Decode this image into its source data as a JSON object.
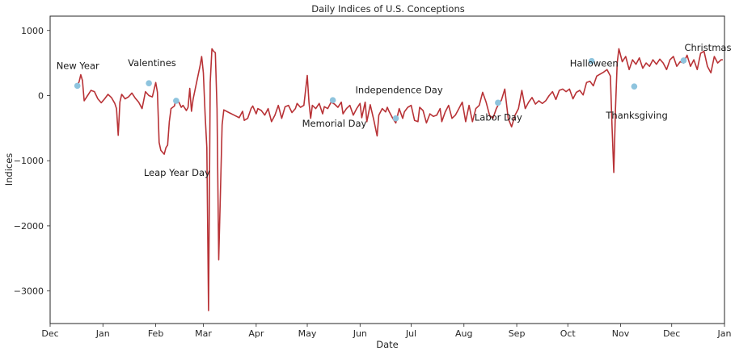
{
  "chart_data": {
    "type": "line",
    "title": "Daily Indices of U.S. Conceptions",
    "xlabel": "Date",
    "ylabel": "Indices",
    "x_axis": {
      "kind": "date",
      "range": [
        "1969-12-01",
        "1971-01-01"
      ],
      "tick_dates": [
        "1969-12-01",
        "1970-01-01",
        "1970-02-01",
        "1970-03-01",
        "1970-04-01",
        "1970-05-01",
        "1970-06-01",
        "1970-07-01",
        "1970-08-01",
        "1970-09-01",
        "1970-10-01",
        "1970-11-01",
        "1970-12-01",
        "1971-01-01"
      ],
      "tick_labels": [
        "Dec",
        "Jan",
        "Feb",
        "Mar",
        "Apr",
        "May",
        "Jun",
        "Jul",
        "Aug",
        "Sep",
        "Oct",
        "Nov",
        "Dec",
        "Jan"
      ]
    },
    "y_axis": {
      "range": [
        -3500,
        1220
      ],
      "ticks": [
        1000,
        0,
        -1000,
        -2000,
        -3000
      ],
      "tick_labels": [
        "1000",
        "0",
        "−1000",
        "−2000",
        "−3000"
      ]
    },
    "grid": false,
    "colors": {
      "line": "#b83236",
      "marker": "#8ec4de",
      "axes": "#262626"
    },
    "series": [
      {
        "points": [
          [
            "1969-12-17",
            160
          ],
          [
            "1969-12-18",
            210
          ],
          [
            "1969-12-19",
            320
          ],
          [
            "1969-12-20",
            230
          ],
          [
            "1969-12-21",
            -80
          ],
          [
            "1969-12-23",
            0
          ],
          [
            "1969-12-25",
            80
          ],
          [
            "1969-12-27",
            60
          ],
          [
            "1969-12-29",
            -50
          ],
          [
            "1969-12-31",
            -110
          ],
          [
            "1970-01-02",
            -50
          ],
          [
            "1970-01-04",
            20
          ],
          [
            "1970-01-06",
            -30
          ],
          [
            "1970-01-08",
            -120
          ],
          [
            "1970-01-09",
            -200
          ],
          [
            "1970-01-10",
            -610
          ],
          [
            "1970-01-11",
            -100
          ],
          [
            "1970-01-12",
            20
          ],
          [
            "1970-01-14",
            -50
          ],
          [
            "1970-01-16",
            -20
          ],
          [
            "1970-01-18",
            40
          ],
          [
            "1970-01-20",
            -40
          ],
          [
            "1970-01-22",
            -100
          ],
          [
            "1970-01-24",
            -200
          ],
          [
            "1970-01-26",
            60
          ],
          [
            "1970-01-28",
            0
          ],
          [
            "1970-01-30",
            -20
          ],
          [
            "1970-02-01",
            200
          ],
          [
            "1970-02-02",
            50
          ],
          [
            "1970-02-03",
            -720
          ],
          [
            "1970-02-04",
            -840
          ],
          [
            "1970-02-06",
            -900
          ],
          [
            "1970-02-07",
            -800
          ],
          [
            "1970-02-08",
            -760
          ],
          [
            "1970-02-09",
            -400
          ],
          [
            "1970-02-10",
            -200
          ],
          [
            "1970-02-12",
            -160
          ],
          [
            "1970-02-13",
            -50
          ],
          [
            "1970-02-14",
            -70
          ],
          [
            "1970-02-16",
            -180
          ],
          [
            "1970-02-17",
            -150
          ],
          [
            "1970-02-19",
            -230
          ],
          [
            "1970-02-20",
            -180
          ],
          [
            "1970-02-21",
            110
          ],
          [
            "1970-02-22",
            -240
          ],
          [
            "1970-02-23",
            -50
          ],
          [
            "1970-02-25",
            200
          ],
          [
            "1970-02-27",
            450
          ],
          [
            "1970-02-28",
            600
          ],
          [
            "1970-03-01",
            350
          ],
          [
            "1970-03-02",
            -300
          ],
          [
            "1970-03-03",
            -800
          ],
          [
            "1970-03-04",
            -3300
          ],
          [
            "1970-03-05",
            200
          ],
          [
            "1970-03-06",
            720
          ],
          [
            "1970-03-07",
            680
          ],
          [
            "1970-03-08",
            660
          ],
          [
            "1970-03-09",
            -200
          ],
          [
            "1970-03-10",
            -2520
          ],
          [
            "1970-03-11",
            -1500
          ],
          [
            "1970-03-12",
            -450
          ],
          [
            "1970-03-13",
            -220
          ],
          [
            "1970-03-16",
            -260
          ],
          [
            "1970-03-19",
            -300
          ],
          [
            "1970-03-22",
            -340
          ],
          [
            "1970-03-24",
            -240
          ],
          [
            "1970-03-25",
            -380
          ],
          [
            "1970-03-27",
            -350
          ],
          [
            "1970-03-29",
            -200
          ],
          [
            "1970-03-30",
            -160
          ],
          [
            "1970-04-01",
            -280
          ],
          [
            "1970-04-02",
            -200
          ],
          [
            "1970-04-04",
            -230
          ],
          [
            "1970-04-06",
            -300
          ],
          [
            "1970-04-08",
            -200
          ],
          [
            "1970-04-10",
            -400
          ],
          [
            "1970-04-12",
            -300
          ],
          [
            "1970-04-14",
            -150
          ],
          [
            "1970-04-16",
            -350
          ],
          [
            "1970-04-18",
            -170
          ],
          [
            "1970-04-20",
            -150
          ],
          [
            "1970-04-22",
            -260
          ],
          [
            "1970-04-24",
            -200
          ],
          [
            "1970-04-25",
            -120
          ],
          [
            "1970-04-27",
            -180
          ],
          [
            "1970-04-29",
            -150
          ],
          [
            "1970-05-01",
            310
          ],
          [
            "1970-05-02",
            -100
          ],
          [
            "1970-05-03",
            -350
          ],
          [
            "1970-05-04",
            -150
          ],
          [
            "1970-05-06",
            -200
          ],
          [
            "1970-05-08",
            -120
          ],
          [
            "1970-05-10",
            -280
          ],
          [
            "1970-05-11",
            -170
          ],
          [
            "1970-05-13",
            -200
          ],
          [
            "1970-05-15",
            -100
          ],
          [
            "1970-05-17",
            -130
          ],
          [
            "1970-05-19",
            -180
          ],
          [
            "1970-05-21",
            -100
          ],
          [
            "1970-05-22",
            -280
          ],
          [
            "1970-05-24",
            -200
          ],
          [
            "1970-05-26",
            -150
          ],
          [
            "1970-05-28",
            -300
          ],
          [
            "1970-05-30",
            -200
          ],
          [
            "1970-06-01",
            -120
          ],
          [
            "1970-06-02",
            -340
          ],
          [
            "1970-06-04",
            -100
          ],
          [
            "1970-06-05",
            -400
          ],
          [
            "1970-06-07",
            -140
          ],
          [
            "1970-06-09",
            -370
          ],
          [
            "1970-06-11",
            -620
          ],
          [
            "1970-06-12",
            -300
          ],
          [
            "1970-06-14",
            -200
          ],
          [
            "1970-06-16",
            -250
          ],
          [
            "1970-06-17",
            -180
          ],
          [
            "1970-06-18",
            -240
          ],
          [
            "1970-06-20",
            -340
          ],
          [
            "1970-06-22",
            -420
          ],
          [
            "1970-06-24",
            -200
          ],
          [
            "1970-06-26",
            -350
          ],
          [
            "1970-06-27",
            -250
          ],
          [
            "1970-06-29",
            -180
          ],
          [
            "1970-07-01",
            -150
          ],
          [
            "1970-07-03",
            -380
          ],
          [
            "1970-07-05",
            -400
          ],
          [
            "1970-07-06",
            -180
          ],
          [
            "1970-07-08",
            -230
          ],
          [
            "1970-07-10",
            -420
          ],
          [
            "1970-07-12",
            -280
          ],
          [
            "1970-07-14",
            -320
          ],
          [
            "1970-07-16",
            -300
          ],
          [
            "1970-07-18",
            -200
          ],
          [
            "1970-07-19",
            -400
          ],
          [
            "1970-07-21",
            -250
          ],
          [
            "1970-07-23",
            -150
          ],
          [
            "1970-07-25",
            -350
          ],
          [
            "1970-07-27",
            -300
          ],
          [
            "1970-07-29",
            -200
          ],
          [
            "1970-07-31",
            -100
          ],
          [
            "1970-08-02",
            -400
          ],
          [
            "1970-08-04",
            -150
          ],
          [
            "1970-08-06",
            -400
          ],
          [
            "1970-08-08",
            -200
          ],
          [
            "1970-08-10",
            -150
          ],
          [
            "1970-08-12",
            50
          ],
          [
            "1970-08-14",
            -100
          ],
          [
            "1970-08-16",
            -300
          ],
          [
            "1970-08-18",
            -350
          ],
          [
            "1970-08-20",
            -200
          ],
          [
            "1970-08-21",
            -150
          ],
          [
            "1970-08-23",
            -70
          ],
          [
            "1970-08-25",
            100
          ],
          [
            "1970-08-27",
            -350
          ],
          [
            "1970-08-29",
            -480
          ],
          [
            "1970-08-31",
            -300
          ],
          [
            "1970-09-02",
            -200
          ],
          [
            "1970-09-04",
            80
          ],
          [
            "1970-09-06",
            -200
          ],
          [
            "1970-09-08",
            -100
          ],
          [
            "1970-09-10",
            -30
          ],
          [
            "1970-09-12",
            -130
          ],
          [
            "1970-09-14",
            -80
          ],
          [
            "1970-09-16",
            -120
          ],
          [
            "1970-09-18",
            -80
          ],
          [
            "1970-09-20",
            0
          ],
          [
            "1970-09-22",
            60
          ],
          [
            "1970-09-24",
            -60
          ],
          [
            "1970-09-26",
            80
          ],
          [
            "1970-09-28",
            100
          ],
          [
            "1970-09-30",
            60
          ],
          [
            "1970-10-02",
            100
          ],
          [
            "1970-10-04",
            -50
          ],
          [
            "1970-10-06",
            50
          ],
          [
            "1970-10-08",
            80
          ],
          [
            "1970-10-10",
            10
          ],
          [
            "1970-10-12",
            200
          ],
          [
            "1970-10-14",
            220
          ],
          [
            "1970-10-16",
            150
          ],
          [
            "1970-10-18",
            300
          ],
          [
            "1970-10-20",
            330
          ],
          [
            "1970-10-22",
            360
          ],
          [
            "1970-10-24",
            400
          ],
          [
            "1970-10-26",
            300
          ],
          [
            "1970-10-27",
            -500
          ],
          [
            "1970-10-28",
            -1180
          ],
          [
            "1970-10-29",
            -200
          ],
          [
            "1970-10-30",
            500
          ],
          [
            "1970-10-31",
            720
          ],
          [
            "1970-11-02",
            520
          ],
          [
            "1970-11-04",
            600
          ],
          [
            "1970-11-06",
            400
          ],
          [
            "1970-11-08",
            550
          ],
          [
            "1970-11-10",
            480
          ],
          [
            "1970-11-12",
            580
          ],
          [
            "1970-11-14",
            420
          ],
          [
            "1970-11-16",
            500
          ],
          [
            "1970-11-18",
            450
          ],
          [
            "1970-11-20",
            550
          ],
          [
            "1970-11-22",
            480
          ],
          [
            "1970-11-24",
            560
          ],
          [
            "1970-11-26",
            500
          ],
          [
            "1970-11-28",
            400
          ],
          [
            "1970-11-30",
            550
          ],
          [
            "1970-12-02",
            600
          ],
          [
            "1970-12-04",
            450
          ],
          [
            "1970-12-06",
            520
          ],
          [
            "1970-12-08",
            500
          ],
          [
            "1970-12-10",
            620
          ],
          [
            "1970-12-12",
            450
          ],
          [
            "1970-12-14",
            550
          ],
          [
            "1970-12-16",
            400
          ],
          [
            "1970-12-18",
            650
          ],
          [
            "1970-12-20",
            680
          ],
          [
            "1970-12-22",
            450
          ],
          [
            "1970-12-24",
            350
          ],
          [
            "1970-12-26",
            600
          ],
          [
            "1970-12-28",
            500
          ],
          [
            "1970-12-30",
            550
          ],
          [
            "1970-12-31",
            550
          ]
        ]
      }
    ],
    "holidays": [
      {
        "label": "New Year",
        "date": "1969-12-17",
        "value": 150
      },
      {
        "label": "Valentines",
        "date": "1970-01-28",
        "value": 190
      },
      {
        "label": "Leap Year Day",
        "date": "1970-02-13",
        "value": -80
      },
      {
        "label": "Memorial Day",
        "date": "1970-05-16",
        "value": -70
      },
      {
        "label": "Independence Day",
        "date": "1970-06-22",
        "value": -350
      },
      {
        "label": "Labor Day",
        "date": "1970-08-21",
        "value": -110
      },
      {
        "label": "Halloween",
        "date": "1970-10-15",
        "value": 530
      },
      {
        "label": "Thanksgiving",
        "date": "1970-11-09",
        "value": 140
      },
      {
        "label": "Christmas",
        "date": "1970-12-08",
        "value": 540
      }
    ]
  }
}
